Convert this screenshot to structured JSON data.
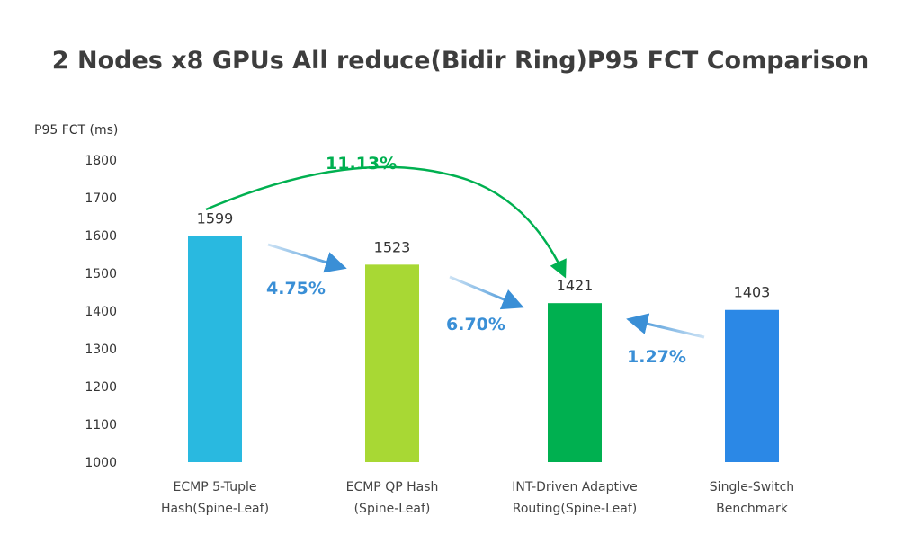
{
  "chart_data": {
    "type": "bar",
    "title": "2 Nodes x8 GPUs All reduce(Bidir Ring)P95 FCT Comparison",
    "xlabel": "",
    "ylabel": "P95 FCT (ms)",
    "ylim": [
      1000,
      1800
    ],
    "yticks": [
      "1000",
      "1100",
      "1200",
      "1300",
      "1400",
      "1500",
      "1600",
      "1700",
      "1800"
    ],
    "grid": false,
    "categories": [
      [
        "ECMP 5-Tuple",
        "Hash(Spine-Leaf)"
      ],
      [
        "ECMP QP Hash",
        "(Spine-Leaf)"
      ],
      [
        "INT-Driven Adaptive",
        "Routing(Spine-Leaf)"
      ],
      [
        "Single-Switch",
        "Benchmark"
      ]
    ],
    "values": [
      1599,
      1523,
      1421,
      1403
    ],
    "data_labels": [
      "1599",
      "1523",
      "1421",
      "1403"
    ],
    "colors": [
      "#29b9e0",
      "#a8d834",
      "#00b050",
      "#2b88e6"
    ],
    "annotations": [
      {
        "text": "4.75%",
        "from": 0,
        "to": 1,
        "color": "#3a8fd6"
      },
      {
        "text": "6.70%",
        "from": 1,
        "to": 2,
        "color": "#3a8fd6"
      },
      {
        "text": "1.27%",
        "from": 3,
        "to": 2,
        "color": "#3a8fd6"
      },
      {
        "text": "11.13%",
        "from": 0,
        "to": 2,
        "color": "#00b050"
      }
    ]
  }
}
